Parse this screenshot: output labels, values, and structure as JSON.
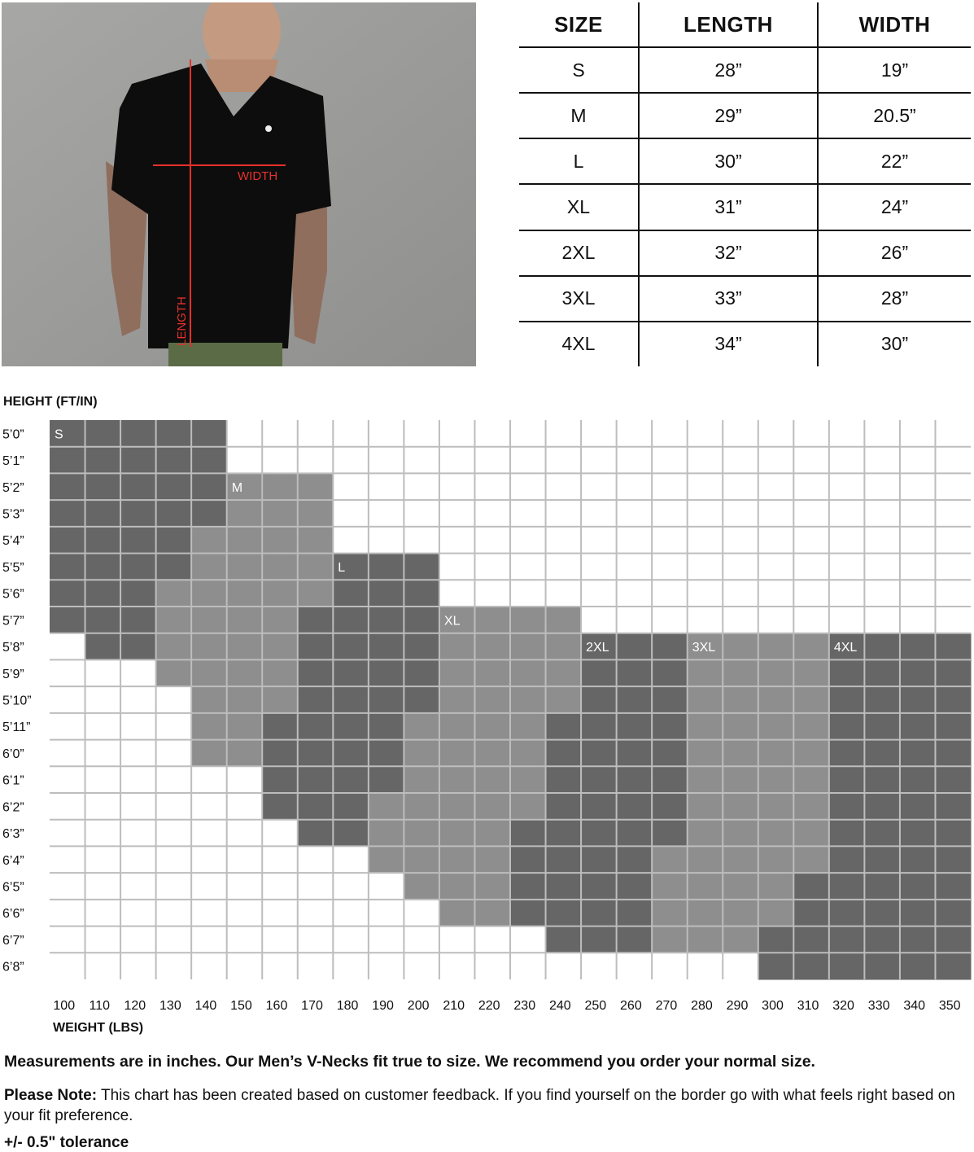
{
  "photo": {
    "width_label": "WIDTH",
    "length_label": "LENGTH",
    "accent": "#e8302c"
  },
  "size_table": {
    "headers": [
      "SIZE",
      "LENGTH",
      "WIDTH"
    ],
    "rows": [
      [
        "S",
        "28”",
        "19”"
      ],
      [
        "M",
        "29”",
        "20.5”"
      ],
      [
        "L",
        "30”",
        "22”"
      ],
      [
        "XL",
        "31”",
        "24”"
      ],
      [
        "2XL",
        "32”",
        "26”"
      ],
      [
        "3XL",
        "33”",
        "28”"
      ],
      [
        "4XL",
        "34”",
        "30”"
      ]
    ]
  },
  "chart_data": {
    "type": "heatmap",
    "ylabel": "HEIGHT (FT/IN)",
    "xlabel": "WEIGHT (LBS)",
    "x": [
      100,
      110,
      120,
      130,
      140,
      150,
      160,
      170,
      180,
      190,
      200,
      210,
      220,
      230,
      240,
      250,
      260,
      270,
      280,
      290,
      300,
      310,
      320,
      330,
      340,
      350
    ],
    "y": [
      "5’0”",
      "5’1”",
      "5’2”",
      "5’3”",
      "5’4”",
      "5’5”",
      "5’6”",
      "5’7”",
      "5’8”",
      "5’9”",
      "5’10”",
      "5’11”",
      "6’0”",
      "6’1”",
      "6’2”",
      "6’3”",
      "6’4”",
      "6’5”",
      "6’6”",
      "6’7”",
      "6’8”"
    ],
    "sizes": [
      "S",
      "M",
      "L",
      "XL",
      "2XL",
      "3XL",
      "4XL"
    ],
    "size_colors": {
      "S": "#666666",
      "M": "#8e8e8e",
      "L": "#666666",
      "XL": "#8e8e8e",
      "2XL": "#666666",
      "3XL": "#8e8e8e",
      "4XL": "#666666"
    },
    "grid_color": "#bdbdbd",
    "rows": [
      {
        "S": [
          100,
          140
        ]
      },
      {
        "S": [
          100,
          140
        ]
      },
      {
        "S": [
          100,
          140
        ],
        "M": [
          150,
          170
        ]
      },
      {
        "S": [
          100,
          140
        ],
        "M": [
          150,
          170
        ]
      },
      {
        "S": [
          100,
          130
        ],
        "M": [
          140,
          170
        ]
      },
      {
        "S": [
          100,
          130
        ],
        "M": [
          140,
          170
        ],
        "L": [
          180,
          200
        ]
      },
      {
        "S": [
          100,
          120
        ],
        "M": [
          130,
          170
        ],
        "L": [
          180,
          200
        ]
      },
      {
        "S": [
          100,
          120
        ],
        "M": [
          130,
          160
        ],
        "L": [
          170,
          200
        ],
        "XL": [
          210,
          240
        ]
      },
      {
        "S": [
          110,
          120
        ],
        "M": [
          130,
          160
        ],
        "L": [
          170,
          200
        ],
        "XL": [
          210,
          240
        ],
        "2XL": [
          250,
          270
        ],
        "3XL": [
          280,
          310
        ],
        "4XL": [
          320,
          350
        ]
      },
      {
        "M": [
          130,
          160
        ],
        "L": [
          170,
          200
        ],
        "XL": [
          210,
          240
        ],
        "2XL": [
          250,
          270
        ],
        "3XL": [
          280,
          310
        ],
        "4XL": [
          320,
          350
        ]
      },
      {
        "M": [
          140,
          160
        ],
        "L": [
          170,
          200
        ],
        "XL": [
          210,
          240
        ],
        "2XL": [
          250,
          270
        ],
        "3XL": [
          280,
          310
        ],
        "4XL": [
          320,
          350
        ]
      },
      {
        "M": [
          140,
          150
        ],
        "L": [
          160,
          190
        ],
        "XL": [
          200,
          230
        ],
        "2XL": [
          240,
          270
        ],
        "3XL": [
          280,
          310
        ],
        "4XL": [
          320,
          350
        ]
      },
      {
        "M": [
          140,
          150
        ],
        "L": [
          160,
          190
        ],
        "XL": [
          200,
          230
        ],
        "2XL": [
          240,
          270
        ],
        "3XL": [
          280,
          310
        ],
        "4XL": [
          320,
          350
        ]
      },
      {
        "L": [
          160,
          190
        ],
        "XL": [
          200,
          230
        ],
        "2XL": [
          240,
          270
        ],
        "3XL": [
          280,
          310
        ],
        "4XL": [
          320,
          350
        ]
      },
      {
        "L": [
          160,
          180
        ],
        "XL": [
          190,
          230
        ],
        "2XL": [
          240,
          270
        ],
        "3XL": [
          280,
          310
        ],
        "4XL": [
          320,
          350
        ]
      },
      {
        "L": [
          170,
          180
        ],
        "XL": [
          190,
          220
        ],
        "2XL": [
          230,
          270
        ],
        "3XL": [
          280,
          310
        ],
        "4XL": [
          320,
          350
        ]
      },
      {
        "XL": [
          190,
          220
        ],
        "2XL": [
          230,
          260
        ],
        "3XL": [
          270,
          310
        ],
        "4XL": [
          320,
          350
        ]
      },
      {
        "XL": [
          200,
          220
        ],
        "2XL": [
          230,
          260
        ],
        "3XL": [
          270,
          300
        ],
        "4XL": [
          310,
          350
        ]
      },
      {
        "XL": [
          210,
          220
        ],
        "2XL": [
          230,
          260
        ],
        "3XL": [
          270,
          300
        ],
        "4XL": [
          310,
          350
        ]
      },
      {
        "2XL": [
          240,
          260
        ],
        "3XL": [
          270,
          290
        ],
        "4XL": [
          300,
          350
        ]
      },
      {
        "4XL": [
          300,
          350
        ]
      }
    ]
  },
  "notes": {
    "fit": "Measurements are in inches. Our Men’s V-Necks fit true to size. We recommend you order your normal size.",
    "please_note_label": "Please Note:",
    "please_note_text": " This chart has been created based on customer feedback. If you find yourself on the border go with what feels right based on your fit preference.",
    "tolerance": "+/- 0.5\" tolerance"
  }
}
